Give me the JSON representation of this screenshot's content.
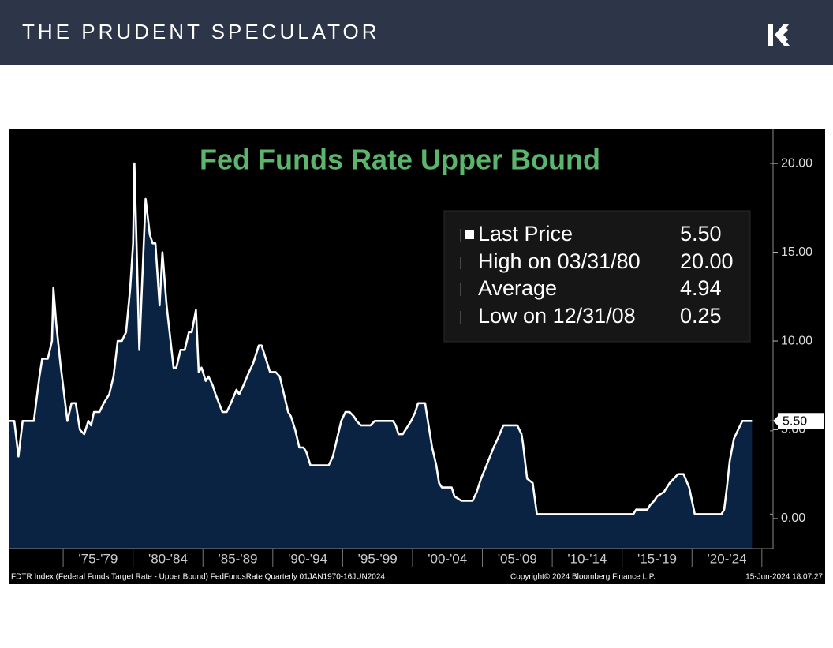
{
  "header": {
    "title": "THE PRUDENT SPECULATOR"
  },
  "chart_data": {
    "type": "area",
    "title": "Fed Funds Rate Upper Bound",
    "color": "#ffffff",
    "fill": "#0b2342",
    "x": [
      1971.1,
      1971.5,
      1971.8,
      1972.1,
      1972.9,
      1973.3,
      1973.5,
      1973.9,
      1974.2,
      1974.3,
      1974.5,
      1974.8,
      1975.3,
      1975.6,
      1975.9,
      1976.2,
      1976.5,
      1976.8,
      1977.0,
      1977.2,
      1977.6,
      1977.9,
      1978.3,
      1978.6,
      1978.9,
      1979.2,
      1979.5,
      1979.8,
      1980.0,
      1980.1,
      1980.45,
      1980.9,
      1981.2,
      1981.4,
      1981.6,
      1981.9,
      1982.1,
      1982.4,
      1982.9,
      1983.1,
      1983.4,
      1983.7,
      1984.0,
      1984.2,
      1984.5,
      1984.7,
      1984.9,
      1985.2,
      1985.4,
      1985.7,
      1985.9,
      1986.4,
      1986.7,
      1987.0,
      1987.4,
      1987.6,
      1987.9,
      1988.3,
      1988.6,
      1989.0,
      1989.2,
      1989.5,
      1989.8,
      1990.2,
      1990.5,
      1990.8,
      1991.1,
      1991.3,
      1991.6,
      1991.9,
      1992.2,
      1992.4,
      1992.7,
      1994.0,
      1994.3,
      1994.6,
      1994.9,
      1995.2,
      1995.5,
      1995.8,
      1996.0,
      1996.3,
      1997.0,
      1997.3,
      1998.6,
      1998.8,
      1999.0,
      1999.3,
      1999.5,
      1999.7,
      1999.9,
      2000.2,
      2000.4,
      2000.9,
      2001.1,
      2001.4,
      2001.7,
      2001.9,
      2002.1,
      2002.8,
      2003.0,
      2003.5,
      2004.3,
      2004.6,
      2004.9,
      2005.3,
      2005.8,
      2006.1,
      2006.5,
      2007.5,
      2007.8,
      2007.9,
      2008.2,
      2008.6,
      2008.9,
      2015.8,
      2016.0,
      2016.8,
      2017.0,
      2017.3,
      2017.5,
      2018.0,
      2018.4,
      2018.7,
      2019.0,
      2019.4,
      2019.8,
      2020.2,
      2022.1,
      2022.3,
      2022.5,
      2022.7,
      2023.0,
      2023.3,
      2023.45,
      2023.6,
      2024.3
    ],
    "values": [
      5.5,
      5.5,
      3.5,
      5.5,
      5.5,
      8.0,
      9.0,
      9.0,
      10.0,
      13.0,
      11.0,
      8.75,
      5.5,
      6.5,
      6.5,
      5.0,
      4.75,
      5.5,
      5.25,
      6.0,
      6.0,
      6.5,
      7.0,
      8.0,
      10.0,
      10.0,
      10.5,
      13.0,
      15.5,
      20.0,
      9.5,
      18.0,
      16.0,
      15.5,
      15.5,
      12.0,
      15.0,
      12.0,
      8.5,
      8.5,
      9.5,
      9.5,
      10.5,
      10.5,
      11.75,
      8.25,
      8.5,
      7.75,
      8.0,
      7.5,
      7.0,
      6.0,
      6.0,
      6.5,
      7.25,
      7.0,
      7.5,
      8.25,
      8.75,
      9.75,
      9.75,
      9.0,
      8.25,
      8.25,
      8.0,
      7.0,
      6.0,
      5.75,
      5.0,
      4.0,
      4.0,
      3.75,
      3.0,
      3.0,
      3.5,
      4.5,
      5.5,
      6.0,
      6.0,
      5.75,
      5.5,
      5.25,
      5.25,
      5.5,
      5.5,
      5.25,
      4.75,
      4.75,
      5.0,
      5.25,
      5.5,
      6.0,
      6.5,
      6.5,
      5.5,
      4.0,
      3.0,
      2.0,
      1.75,
      1.75,
      1.25,
      1.0,
      1.0,
      1.5,
      2.25,
      3.0,
      4.0,
      4.5,
      5.25,
      5.25,
      4.75,
      4.25,
      2.25,
      2.0,
      0.25,
      0.25,
      0.5,
      0.5,
      0.75,
      1.0,
      1.25,
      1.5,
      2.0,
      2.25,
      2.5,
      2.5,
      1.75,
      0.25,
      0.25,
      0.5,
      1.75,
      3.25,
      4.5,
      5.0,
      5.25,
      5.5,
      5.5
    ],
    "xlim": [
      1971.1,
      2025.8
    ],
    "xticks": [
      1975,
      1980,
      1985,
      1990,
      1995,
      2000,
      2005,
      2010,
      2015,
      2020,
      2025
    ],
    "x_period_labels": [
      "'75-'79",
      "'80-'84",
      "'85-'89",
      "'90-'94",
      "'95-'99",
      "'00-'04",
      "'05-'09",
      "'10-'14",
      "'15-'19",
      "'20-'24"
    ],
    "ylim": [
      -1.69,
      21.96
    ],
    "yticks": [
      {
        "value": 0,
        "label": "0.00"
      },
      {
        "value": 5,
        "label": "5.00"
      },
      {
        "value": 10,
        "label": "10.00"
      },
      {
        "value": 15,
        "label": "15.00"
      },
      {
        "value": 20,
        "label": "20.00"
      }
    ],
    "stats": {
      "labels": [
        "Last Price",
        "High on 03/31/80",
        "Average",
        "Low on 12/31/08"
      ],
      "values": [
        5.5,
        20,
        4.94,
        0.25
      ],
      "value_labels": [
        "5.50",
        "20.00",
        "4.94",
        "0.25"
      ]
    },
    "footer": {
      "left": "FDTR Index (Federal Funds Target Rate - Upper Bound) FedFundsRate  Quarterly 01JAN1970-16JUN2024",
      "center": "Copyright© 2024 Bloomberg Finance L.P.",
      "right": "15-Jun-2024 18:07:27"
    }
  }
}
